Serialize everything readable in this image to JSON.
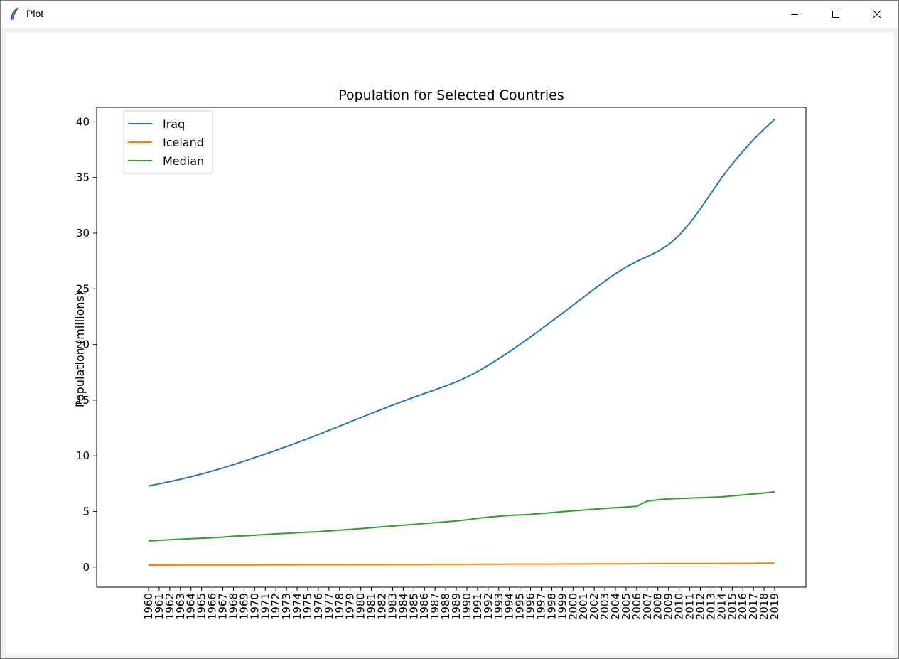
{
  "window": {
    "title": "Plot",
    "icons": {
      "app": "feather-icon",
      "minimize": "minimize-icon",
      "maximize": "maximize-icon",
      "close": "close-icon"
    }
  },
  "colors": {
    "Iraq": "#1f77b4",
    "Iceland": "#ff7f0e",
    "Median": "#2ca02c"
  },
  "chart_data": {
    "type": "line",
    "title": "Population for Selected Countries",
    "xlabel": "",
    "ylabel": "Population (millions)",
    "ylim": [
      -1.8,
      41.3
    ],
    "yticks": [
      0,
      5,
      10,
      15,
      20,
      25,
      30,
      35,
      40
    ],
    "legend": "upper-left",
    "grid": false,
    "x": [
      "1960",
      "1961",
      "1962",
      "1963",
      "1964",
      "1965",
      "1966",
      "1967",
      "1968",
      "1969",
      "1970",
      "1971",
      "1972",
      "1973",
      "1974",
      "1975",
      "1976",
      "1977",
      "1978",
      "1979",
      "1980",
      "1981",
      "1982",
      "1983",
      "1984",
      "1985",
      "1986",
      "1987",
      "1988",
      "1989",
      "1990",
      "1991",
      "1992",
      "1993",
      "1994",
      "1995",
      "1996",
      "1997",
      "1998",
      "1999",
      "2000",
      "2001",
      "2002",
      "2003",
      "2004",
      "2005",
      "2006",
      "2007",
      "2008",
      "2009",
      "2010",
      "2011",
      "2012",
      "2013",
      "2014",
      "2015",
      "2016",
      "2017",
      "2018",
      "2019"
    ],
    "series": [
      {
        "name": "Iraq",
        "values": [
          7.29,
          7.48,
          7.68,
          7.89,
          8.12,
          8.37,
          8.63,
          8.91,
          9.21,
          9.52,
          9.84,
          10.16,
          10.49,
          10.83,
          11.18,
          11.54,
          11.91,
          12.29,
          12.67,
          13.05,
          13.43,
          13.81,
          14.18,
          14.55,
          14.91,
          15.26,
          15.6,
          15.93,
          16.27,
          16.64,
          17.07,
          17.57,
          18.12,
          18.72,
          19.35,
          20.0,
          20.68,
          21.38,
          22.09,
          22.8,
          23.53,
          24.25,
          24.98,
          25.68,
          26.35,
          26.95,
          27.46,
          27.9,
          28.36,
          28.97,
          29.8,
          30.89,
          32.18,
          33.58,
          34.96,
          36.21,
          37.35,
          38.39,
          39.35,
          40.22
        ]
      },
      {
        "name": "Iceland",
        "values": [
          0.18,
          0.18,
          0.18,
          0.19,
          0.19,
          0.19,
          0.19,
          0.2,
          0.2,
          0.2,
          0.2,
          0.21,
          0.21,
          0.21,
          0.21,
          0.22,
          0.22,
          0.22,
          0.22,
          0.22,
          0.23,
          0.23,
          0.23,
          0.24,
          0.24,
          0.24,
          0.24,
          0.25,
          0.25,
          0.25,
          0.25,
          0.26,
          0.26,
          0.26,
          0.27,
          0.27,
          0.27,
          0.27,
          0.27,
          0.28,
          0.28,
          0.28,
          0.29,
          0.29,
          0.29,
          0.3,
          0.3,
          0.31,
          0.32,
          0.32,
          0.32,
          0.32,
          0.32,
          0.32,
          0.33,
          0.33,
          0.34,
          0.34,
          0.35,
          0.36
        ]
      },
      {
        "name": "Median",
        "values": [
          2.35,
          2.41,
          2.46,
          2.51,
          2.56,
          2.6,
          2.64,
          2.7,
          2.77,
          2.81,
          2.87,
          2.93,
          2.99,
          3.04,
          3.09,
          3.14,
          3.18,
          3.25,
          3.33,
          3.39,
          3.46,
          3.54,
          3.62,
          3.69,
          3.77,
          3.84,
          3.92,
          3.99,
          4.07,
          4.16,
          4.25,
          4.39,
          4.49,
          4.57,
          4.65,
          4.69,
          4.74,
          4.82,
          4.9,
          4.99,
          5.06,
          5.13,
          5.21,
          5.28,
          5.34,
          5.4,
          5.46,
          5.93,
          6.05,
          6.13,
          6.17,
          6.2,
          6.24,
          6.27,
          6.31,
          6.4,
          6.48,
          6.57,
          6.66,
          6.76
        ]
      }
    ]
  }
}
